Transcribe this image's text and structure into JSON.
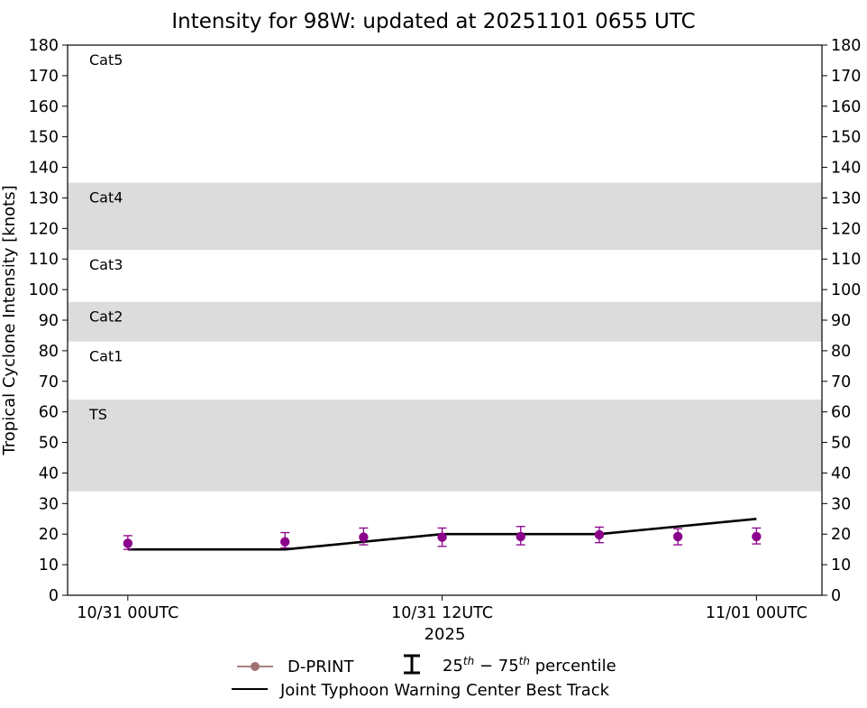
{
  "chart_data": {
    "type": "line",
    "title": "Intensity for 98W: updated at 20251101 0655 UTC",
    "ylabel": "Tropical Cyclone Intensity [knots]",
    "xlabel": "2025",
    "ylim": [
      0,
      180
    ],
    "yticks": [
      0,
      10,
      20,
      30,
      40,
      50,
      60,
      70,
      80,
      90,
      100,
      110,
      120,
      130,
      140,
      150,
      160,
      170,
      180
    ],
    "y_axis_mirrored_right": true,
    "xlim_hours": [
      -2.3,
      26.5
    ],
    "xticks": [
      {
        "hour": 0,
        "label": "10/31 00UTC"
      },
      {
        "hour": 12,
        "label": "10/31 12UTC"
      },
      {
        "hour": 24,
        "label": "11/01 00UTC"
      }
    ],
    "x_unit": "hours after 10/31 00UTC",
    "bands": [
      {
        "label": "TS",
        "from": 34,
        "to": 64,
        "shaded": true
      },
      {
        "label": "Cat1",
        "from": 64,
        "to": 83,
        "shaded": false
      },
      {
        "label": "Cat2",
        "from": 83,
        "to": 96,
        "shaded": true
      },
      {
        "label": "Cat3",
        "from": 96,
        "to": 113,
        "shaded": false
      },
      {
        "label": "Cat4",
        "from": 113,
        "to": 135,
        "shaded": true
      },
      {
        "label": "Cat5",
        "from": 135,
        "to": 180,
        "shaded": false
      }
    ],
    "series": [
      {
        "name": "D-PRINT",
        "type": "scatter",
        "color": "#8b008b",
        "legend_color": "#a07070",
        "x": [
          0,
          6,
          9,
          12,
          15,
          18,
          21,
          24
        ],
        "y": [
          17,
          17.5,
          19,
          19,
          19.2,
          19.8,
          19.2,
          19.2
        ],
        "p25": [
          15,
          15.5,
          16.5,
          16,
          16.5,
          17.2,
          16.5,
          16.8
        ],
        "p75": [
          19.5,
          20.5,
          22,
          22,
          22.5,
          22.3,
          21.8,
          22
        ]
      },
      {
        "name": "Joint Typhoon Warning Center Best Track",
        "type": "line",
        "color": "#000000",
        "x": [
          0,
          6,
          9,
          12,
          15,
          18,
          21,
          24
        ],
        "y": [
          15,
          15,
          17.5,
          20,
          20,
          20,
          22.5,
          25
        ]
      }
    ],
    "legend": {
      "placement": "bottom-center",
      "dprint": "D-PRINT",
      "percentile": "25th − 75th percentile",
      "percentile_sup1": "th",
      "percentile_sup2": "th",
      "percentile_lo": "25",
      "percentile_hi": "75",
      "percentile_word": "percentile",
      "best_track": "Joint Typhoon Warning Center Best Track"
    },
    "band_color": "#dcdcdc"
  }
}
